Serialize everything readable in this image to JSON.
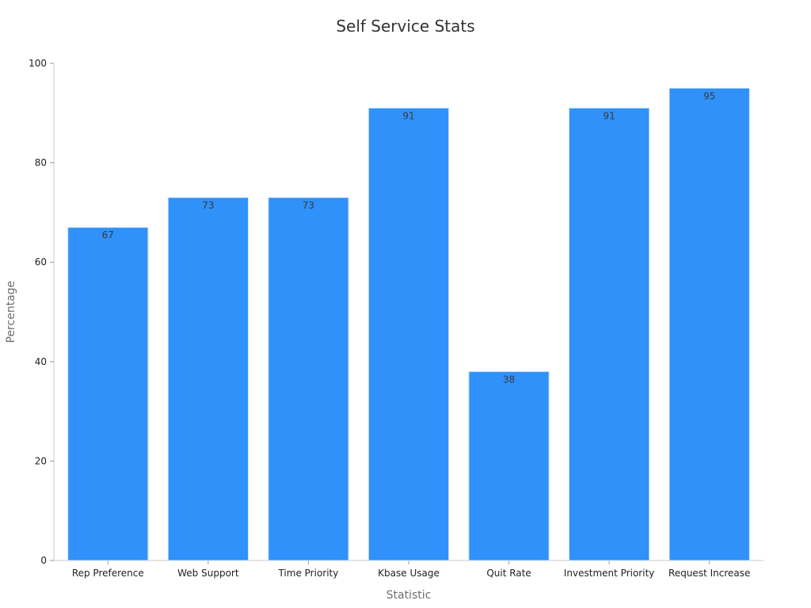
{
  "chart_data": {
    "type": "bar",
    "title": "Self Service Stats",
    "xlabel": "Statistic",
    "ylabel": "Percentage",
    "categories": [
      "Rep Preference",
      "Web Support",
      "Time Priority",
      "Kbase Usage",
      "Quit Rate",
      "Investment Priority",
      "Request Increase"
    ],
    "values": [
      67,
      73,
      73,
      91,
      38,
      91,
      95
    ],
    "ylim": [
      0,
      100
    ],
    "yticks": [
      0,
      20,
      40,
      60,
      80,
      100
    ],
    "grid": false,
    "legend": "none",
    "bar_color": "#2f91f9",
    "data_labels": true
  }
}
